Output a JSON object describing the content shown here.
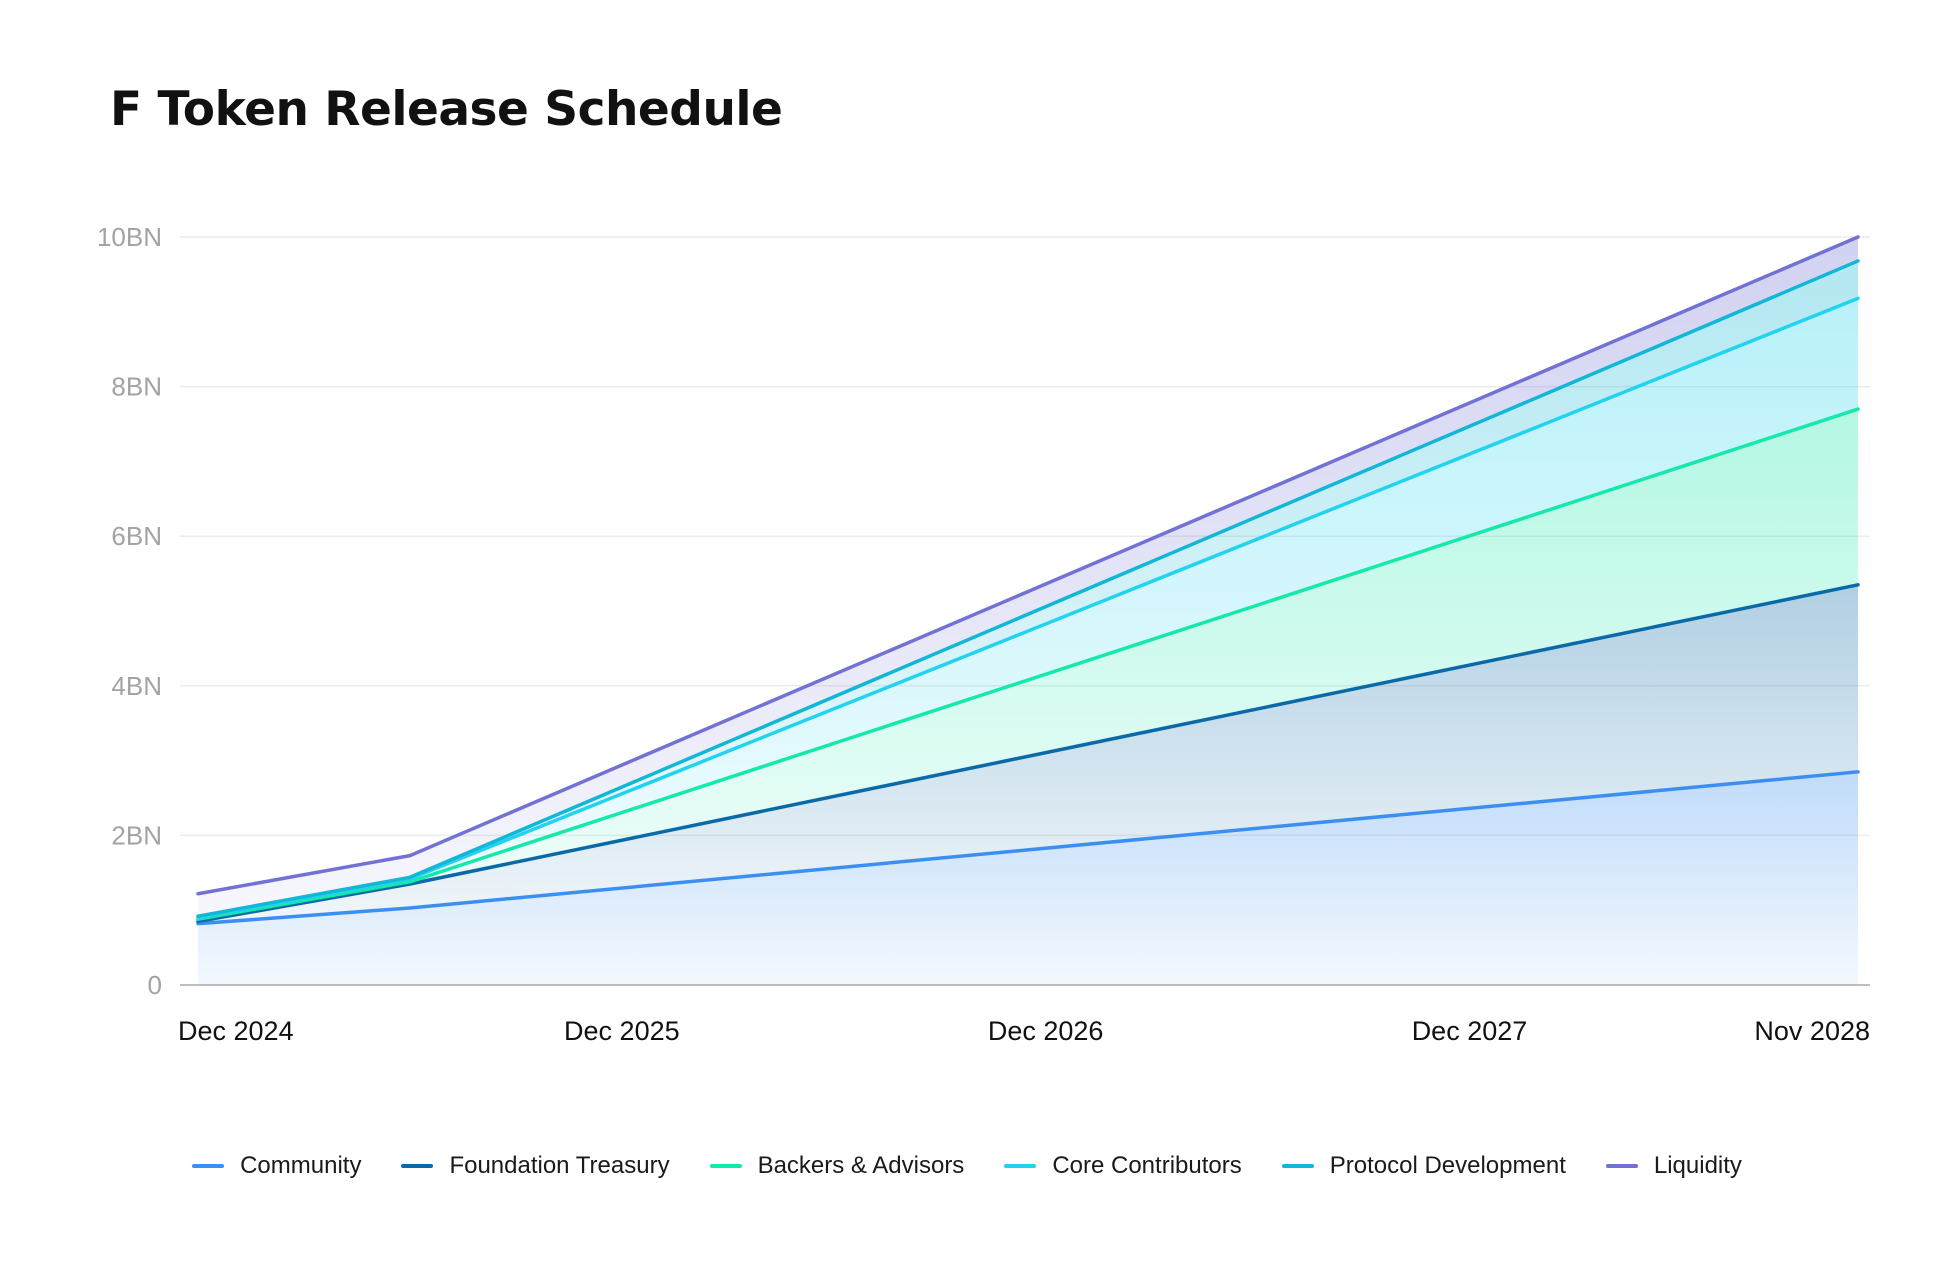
{
  "chart_data": {
    "type": "area",
    "title": "F Token Release Schedule",
    "xlabel": "",
    "ylabel": "",
    "x": [
      "Dec 2024",
      "Jun 2025",
      "Nov 2028"
    ],
    "x_positions": [
      0,
      6,
      47
    ],
    "x_range": [
      0,
      47
    ],
    "xticks": [
      {
        "label": "Dec 2024",
        "pos": 0
      },
      {
        "label": "Dec 2025",
        "pos": 12
      },
      {
        "label": "Dec 2026",
        "pos": 24
      },
      {
        "label": "Dec 2027",
        "pos": 36
      },
      {
        "label": "Nov 2028",
        "pos": 47
      }
    ],
    "ylim": [
      0,
      10
    ],
    "yticks": [
      0,
      2,
      4,
      6,
      8,
      10
    ],
    "ytick_labels": [
      "0",
      "2BN",
      "4BN",
      "6BN",
      "8BN",
      "10BN"
    ],
    "grid": true,
    "stacked": true,
    "legend_position": "bottom",
    "series": [
      {
        "name": "Community",
        "color": "#3b8ff0",
        "cumulative": [
          0.82,
          1.03,
          2.85
        ]
      },
      {
        "name": "Foundation Treasury",
        "color": "#0a6aa8",
        "cumulative": [
          0.85,
          1.35,
          5.35
        ]
      },
      {
        "name": "Backers & Advisors",
        "color": "#14e8aa",
        "cumulative": [
          0.88,
          1.38,
          7.7
        ]
      },
      {
        "name": "Core Contributors",
        "color": "#22d3f0",
        "cumulative": [
          0.9,
          1.42,
          9.18
        ]
      },
      {
        "name": "Protocol Development",
        "color": "#12b6d6",
        "cumulative": [
          0.92,
          1.44,
          9.68
        ]
      },
      {
        "name": "Liquidity",
        "color": "#7172d4",
        "cumulative": [
          1.22,
          1.73,
          10.0
        ]
      }
    ]
  }
}
